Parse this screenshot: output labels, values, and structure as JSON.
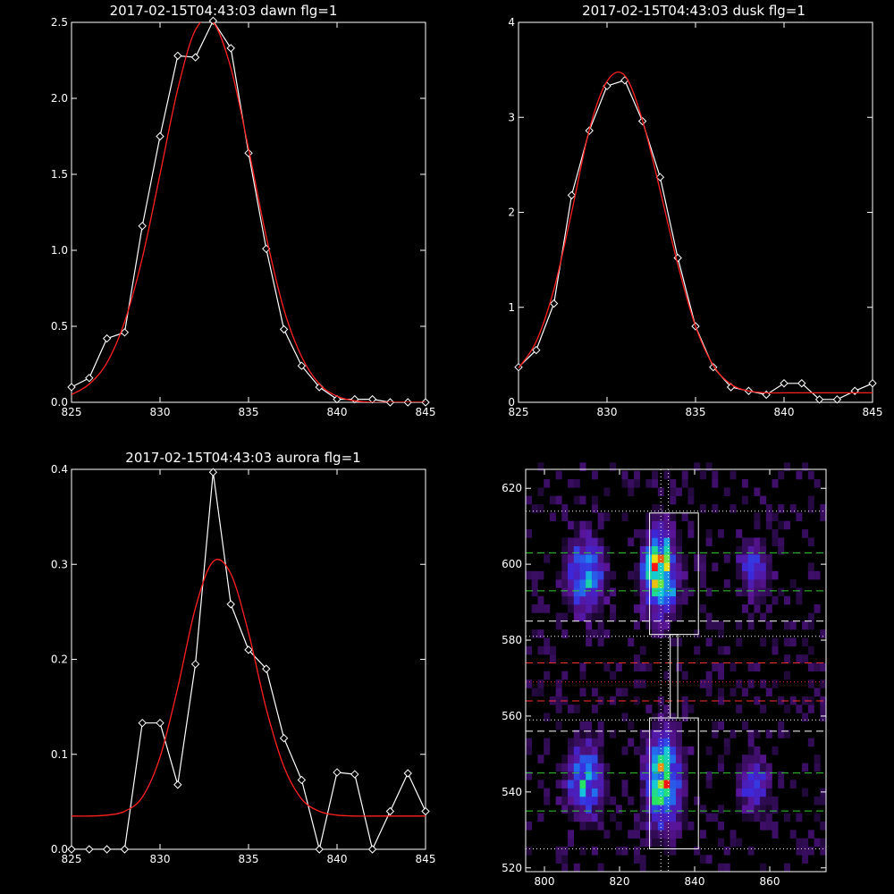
{
  "chart_data": [
    {
      "type": "line",
      "title": "2017-02-15T04:43:03 dawn flg=1",
      "xlim": [
        825,
        845
      ],
      "ylim": [
        0,
        2.5
      ],
      "xticks": [
        825,
        830,
        835,
        840,
        845
      ],
      "yticks": [
        0.0,
        0.5,
        1.0,
        1.5,
        2.0,
        2.5
      ],
      "ytick_labels": [
        "0.0",
        "0.5",
        "1.0",
        "1.5",
        "2.0",
        "2.5"
      ],
      "series": [
        {
          "color": "#ffffff",
          "marker": "diamond",
          "x": [
            825,
            826,
            827,
            828,
            829,
            830,
            831,
            832,
            833,
            834,
            835,
            836,
            837,
            838,
            839,
            840,
            841,
            842,
            843,
            844,
            845
          ],
          "y": [
            0.1,
            0.16,
            0.42,
            0.46,
            1.16,
            1.75,
            2.28,
            2.27,
            2.51,
            2.33,
            1.64,
            1.01,
            0.48,
            0.24,
            0.1,
            0.02,
            0.02,
            0.02,
            0.0,
            0.0,
            0.0
          ]
        },
        {
          "color": "#ff2020",
          "fit": "gaussian",
          "x": [
            825,
            826,
            827,
            828,
            829,
            830,
            831,
            832,
            833,
            834,
            835,
            836,
            837,
            838,
            839,
            840,
            841,
            842,
            843,
            844,
            845
          ],
          "y": [
            0.05,
            0.12,
            0.26,
            0.53,
            0.95,
            1.5,
            2.06,
            2.45,
            2.5,
            2.2,
            1.67,
            1.09,
            0.61,
            0.3,
            0.12,
            0.04,
            0.01,
            0.0,
            0.0,
            0.0,
            0.0
          ]
        }
      ]
    },
    {
      "type": "line",
      "title": "2017-02-15T04:43:03 dusk flg=1",
      "xlim": [
        825,
        845
      ],
      "ylim": [
        0,
        4
      ],
      "xticks": [
        825,
        830,
        835,
        840,
        845
      ],
      "yticks": [
        0,
        1,
        2,
        3,
        4
      ],
      "ytick_labels": [
        "0",
        "1",
        "2",
        "3",
        "4"
      ],
      "series": [
        {
          "color": "#ffffff",
          "marker": "diamond",
          "x": [
            825,
            826,
            827,
            828,
            829,
            830,
            831,
            832,
            833,
            834,
            835,
            836,
            837,
            838,
            839,
            840,
            841,
            842,
            843,
            844,
            845
          ],
          "y": [
            0.37,
            0.55,
            1.04,
            2.18,
            2.86,
            3.33,
            3.39,
            2.96,
            2.37,
            1.52,
            0.8,
            0.37,
            0.16,
            0.12,
            0.08,
            0.2,
            0.2,
            0.03,
            0.03,
            0.12,
            0.2
          ]
        },
        {
          "color": "#ff2020",
          "fit": "gaussian",
          "x": [
            825,
            826,
            827,
            828,
            829,
            830,
            831,
            832,
            833,
            834,
            835,
            836,
            837,
            838,
            839,
            840,
            841,
            842,
            843,
            844,
            845
          ],
          "y": [
            0.36,
            0.64,
            1.19,
            2.0,
            2.87,
            3.38,
            3.44,
            2.97,
            2.23,
            1.45,
            0.8,
            0.39,
            0.19,
            0.12,
            0.1,
            0.1,
            0.1,
            0.1,
            0.1,
            0.1,
            0.1
          ]
        }
      ]
    },
    {
      "type": "line",
      "title": "2017-02-15T04:43:03 aurora flg=1",
      "xlim": [
        825,
        845
      ],
      "ylim": [
        0,
        0.4
      ],
      "xticks": [
        825,
        830,
        835,
        840,
        845
      ],
      "yticks": [
        0.0,
        0.1,
        0.2,
        0.3,
        0.4
      ],
      "ytick_labels": [
        "0.0",
        "0.1",
        "0.2",
        "0.3",
        "0.4"
      ],
      "series": [
        {
          "color": "#ffffff",
          "marker": "diamond",
          "x": [
            825,
            826,
            827,
            828,
            829,
            830,
            831,
            832,
            833,
            834,
            835,
            836,
            837,
            838,
            839,
            840,
            841,
            842,
            843,
            844,
            845
          ],
          "y": [
            0.0,
            0.0,
            0.0,
            0.0,
            0.133,
            0.133,
            0.068,
            0.195,
            0.397,
            0.258,
            0.21,
            0.19,
            0.117,
            0.073,
            0.0,
            0.081,
            0.079,
            0.0,
            0.04,
            0.08,
            0.04
          ]
        },
        {
          "color": "#ff2020",
          "fit": "gaussian",
          "x": [
            825,
            826,
            827,
            828,
            829,
            830,
            831,
            832,
            833,
            834,
            835,
            836,
            837,
            838,
            839,
            840,
            841,
            842,
            843,
            844,
            845
          ],
          "y": [
            0.035,
            0.035,
            0.036,
            0.04,
            0.055,
            0.097,
            0.17,
            0.254,
            0.303,
            0.29,
            0.228,
            0.148,
            0.087,
            0.053,
            0.04,
            0.036,
            0.035,
            0.035,
            0.035,
            0.035,
            0.035
          ]
        }
      ]
    },
    {
      "type": "heatmap",
      "title": "",
      "xlim": [
        795,
        875
      ],
      "ylim": [
        519,
        625
      ],
      "xticks": [
        800,
        820,
        840,
        860
      ],
      "yticks": [
        520,
        540,
        560,
        580,
        600,
        620
      ],
      "ytick_labels": [
        "520",
        "540",
        "560",
        "580",
        "600",
        "620"
      ],
      "grid_cell": [
        1.6,
        2.2
      ],
      "hotspots": [
        {
          "x": 810,
          "y": 596,
          "sx": 3.0,
          "sy": 6.0,
          "amp": 0.65
        },
        {
          "x": 830,
          "y": 597,
          "sx": 2.8,
          "sy": 7.0,
          "amp": 1.0
        },
        {
          "x": 855,
          "y": 598,
          "sx": 2.5,
          "sy": 5.0,
          "amp": 0.4
        },
        {
          "x": 810,
          "y": 542,
          "sx": 3.0,
          "sy": 6.0,
          "amp": 0.6
        },
        {
          "x": 831,
          "y": 542,
          "sx": 3.0,
          "sy": 8.0,
          "amp": 0.85
        },
        {
          "x": 855,
          "y": 540,
          "sx": 2.5,
          "sy": 5.0,
          "amp": 0.35
        }
      ],
      "boxes": [
        {
          "x0": 828,
          "x1": 841,
          "y0": 581.5,
          "y1": 613.5
        },
        {
          "x0": 833.5,
          "x1": 835.5,
          "y0": 559.5,
          "y1": 581.5
        },
        {
          "x0": 828,
          "x1": 841,
          "y0": 525,
          "y1": 559.5
        }
      ],
      "hlines": [
        {
          "y": 614,
          "color": "#ffffff",
          "style": "dotted"
        },
        {
          "y": 581,
          "color": "#ffffff",
          "style": "dotted"
        },
        {
          "y": 559,
          "color": "#ffffff",
          "style": "dotted"
        },
        {
          "y": 525,
          "color": "#ffffff",
          "style": "dotted"
        },
        {
          "y": 603,
          "color": "#33cc33",
          "style": "dashed"
        },
        {
          "y": 593,
          "color": "#33cc33",
          "style": "dashed"
        },
        {
          "y": 585,
          "color": "#ffffff",
          "style": "dashed"
        },
        {
          "y": 574,
          "color": "#ff3030",
          "style": "dashed"
        },
        {
          "y": 569,
          "color": "#ff3030",
          "style": "dotted"
        },
        {
          "y": 564,
          "color": "#ff3030",
          "style": "dashed"
        },
        {
          "y": 556,
          "color": "#ffffff",
          "style": "dashed"
        },
        {
          "y": 545,
          "color": "#33cc33",
          "style": "dashed"
        },
        {
          "y": 535,
          "color": "#33cc33",
          "style": "dashed"
        }
      ],
      "vlines": [
        {
          "x": 831,
          "color": "#ffffff",
          "style": "dotted"
        },
        {
          "x": 833,
          "color": "#ffffff",
          "style": "dotted"
        }
      ]
    }
  ]
}
